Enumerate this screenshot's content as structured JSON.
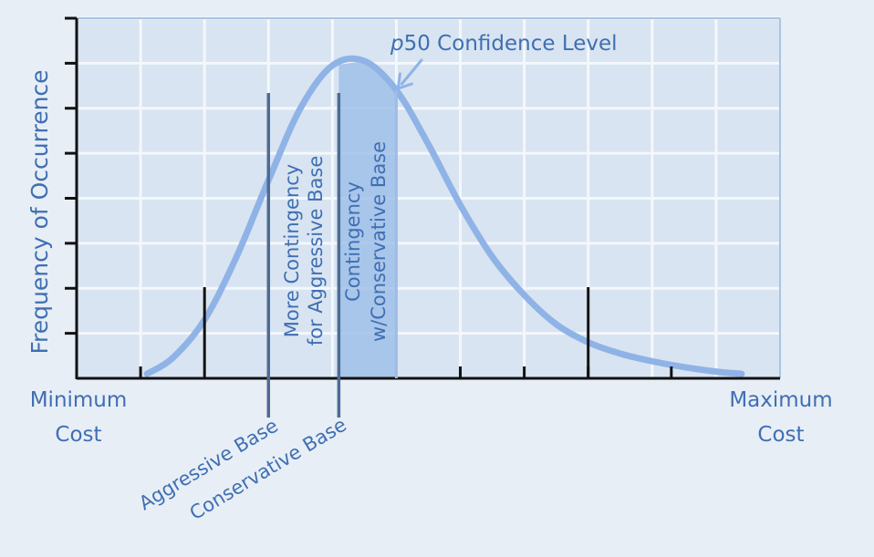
{
  "chart_data": {
    "type": "area",
    "title": "",
    "ylabel": "Frequency of Occurrence",
    "xlabel": "",
    "x_end_labels": {
      "left": [
        "Minimum",
        "Cost"
      ],
      "right": [
        "Maximum",
        "Cost"
      ]
    },
    "xlim": [
      0,
      11
    ],
    "ylim": [
      0,
      8
    ],
    "grid": true,
    "x_minor_ticks": [
      1,
      6,
      7,
      8,
      9.3
    ],
    "x_major_ticks": [
      2,
      8
    ],
    "curve": {
      "x": [
        1.1,
        1.5,
        2.0,
        2.5,
        3.0,
        3.5,
        4.0,
        4.5,
        5.0,
        5.5,
        6.0,
        6.5,
        7.0,
        7.5,
        8.0,
        8.5,
        9.0,
        9.5,
        10.0,
        10.4
      ],
      "y": [
        0.1,
        0.45,
        1.3,
        2.7,
        4.4,
        6.0,
        6.95,
        7.05,
        6.4,
        5.2,
        3.85,
        2.7,
        1.85,
        1.2,
        0.8,
        0.55,
        0.38,
        0.25,
        0.15,
        0.1
      ]
    },
    "markers": [
      {
        "name": "Aggressive Base",
        "x": 3.0
      },
      {
        "name": "Conservative Base",
        "x": 4.1
      }
    ],
    "regions": [
      {
        "name": "More Contingency for Aggressive Base",
        "lines": [
          "More Contingency",
          "for Aggressive Base"
        ],
        "x_start": 3.0,
        "x_end": 4.1
      },
      {
        "name": "Contingency w/Conservative Base",
        "lines": [
          "Contingency",
          "w/Conservative Base"
        ],
        "x_start": 4.1,
        "x_end": 5.0,
        "shaded": true
      }
    ],
    "annotation": {
      "text_italic": "p",
      "text": "50 Confidence Level",
      "x": 5.0
    },
    "colors": {
      "curve": "#8fb3e6",
      "shade": "#9cbde8",
      "grid": "#f4f7fb",
      "plot_bg": "#d8e4f1",
      "text": "#3f6fb2",
      "axis": "#111111",
      "marker": "#4d6b93"
    }
  }
}
